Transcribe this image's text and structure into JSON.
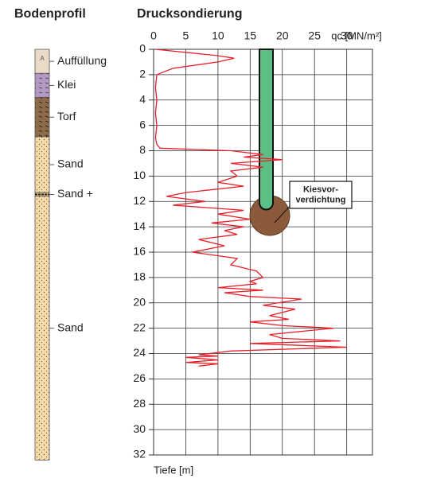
{
  "soil_profile": {
    "title": "Bodenprofil",
    "layers": [
      {
        "label": "Auffüllung",
        "symbol": "A",
        "top": 0,
        "bottom": 1.9,
        "color": "#eadbc8"
      },
      {
        "label": "Klei",
        "top": 1.9,
        "bottom": 3.8,
        "color": "#b39ac4"
      },
      {
        "label": "Torf",
        "top": 3.8,
        "bottom": 6.9,
        "color": "#8c6b4a"
      },
      {
        "label": "Sand",
        "top": 6.9,
        "bottom": 11.3,
        "color": "#f6dcaa"
      },
      {
        "label": "Sand +",
        "top": 11.3,
        "bottom": 11.6,
        "color": "#e8c890"
      },
      {
        "label": "Sand",
        "top": 11.6,
        "bottom": 32.4,
        "color": "#f6dcaa"
      }
    ]
  },
  "chart_data": {
    "type": "line",
    "title": "Drucksondierung",
    "xlabel": "qc [MN/m²]",
    "ylabel": "Tiefe [m]",
    "annotation": "Kiesvor-verdichtung",
    "color": "#e8202a",
    "x": [
      0.3,
      10,
      12.5,
      10,
      3,
      0.5,
      0.3,
      0.5,
      0.3,
      0.5,
      0.3,
      0.5,
      1,
      12,
      17,
      14,
      20,
      12,
      17,
      12,
      13,
      10,
      14,
      5,
      2,
      8,
      3,
      14,
      10,
      15,
      9,
      14,
      11,
      13,
      7,
      11,
      6,
      13,
      12,
      16,
      17,
      15,
      16,
      10,
      17,
      11,
      15,
      23,
      17,
      22,
      18,
      21,
      15,
      20,
      28,
      18,
      20,
      29,
      15,
      30,
      12,
      7,
      10,
      5,
      10,
      5,
      10,
      7
    ],
    "values": [
      0,
      0.5,
      0.7,
      1,
      1.5,
      2,
      3,
      4,
      5,
      6,
      7,
      7.5,
      7.8,
      8,
      8.3,
      8.5,
      8.7,
      9,
      9.3,
      9.6,
      10,
      10.5,
      10.8,
      11.3,
      11.6,
      12,
      12.3,
      12.7,
      13,
      13.4,
      13.7,
      14,
      14.3,
      14.6,
      15,
      15.5,
      16,
      16.5,
      17,
      17.5,
      18,
      18.3,
      18.5,
      18.8,
      19,
      19.2,
      19.5,
      19.7,
      20.2,
      20.5,
      21,
      21.3,
      21.5,
      21.8,
      22,
      22.5,
      22.8,
      23,
      23.2,
      23.5,
      23.8,
      24.1,
      24.2,
      24.3,
      24.5,
      24.7,
      24.8,
      25
    ],
    "xlim": [
      0,
      34
    ],
    "xticks": [
      0,
      5,
      10,
      15,
      20,
      25,
      30
    ],
    "ylim": [
      0,
      32
    ],
    "yticks": [
      0,
      2,
      4,
      6,
      8,
      10,
      12,
      14,
      16,
      18,
      20,
      22,
      24,
      26,
      28,
      30,
      32
    ],
    "grid": true
  }
}
